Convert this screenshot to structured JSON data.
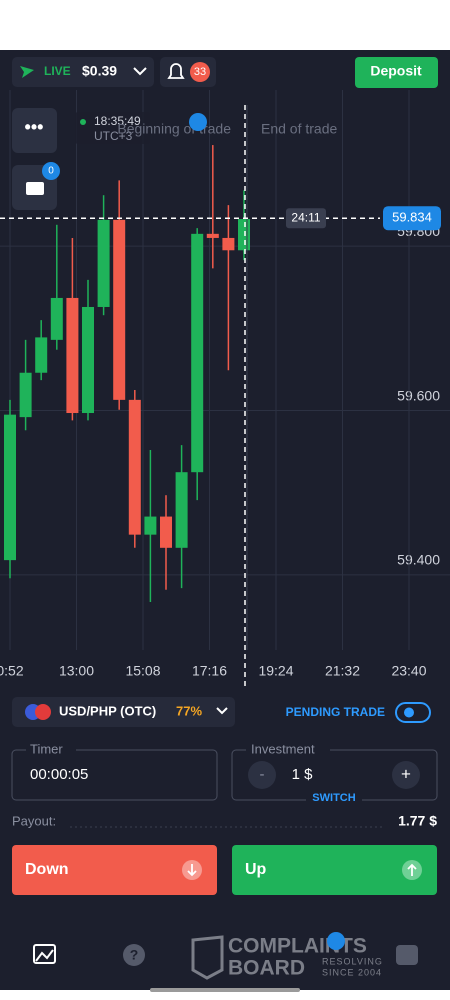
{
  "header": {
    "mode": "LIVE",
    "balance": "$0.39",
    "notifications": "33",
    "deposit": "Deposit"
  },
  "sidebar": {
    "portfolio_count": "0"
  },
  "chart_data": {
    "type": "candlestick",
    "time": "18:35:49",
    "timezone": "UTC+3",
    "trade_start_label": "Beginning of trade",
    "trade_end_label": "End of trade",
    "countdown": "24:11",
    "current_price": 59.834,
    "up_color": "#1fb35a",
    "down_color": "#f25c4c",
    "grid": true,
    "ylim": [
      59.26,
      59.99
    ],
    "yticks": [
      {
        "value": 59.8,
        "label": "59.800"
      },
      {
        "value": 59.6,
        "label": "59.600"
      },
      {
        "value": 59.4,
        "label": "59.400"
      }
    ],
    "xtick_labels": [
      "0:52",
      "13:00",
      "15:08",
      "17:16",
      "19:24",
      "21:32",
      "23:40"
    ],
    "open": [
      59.418,
      59.592,
      59.646,
      59.686,
      59.737,
      59.597,
      59.726,
      59.832,
      59.613,
      59.449,
      59.471,
      59.433,
      59.525,
      59.815,
      59.81,
      59.795
    ],
    "high": [
      59.613,
      59.686,
      59.71,
      59.826,
      59.81,
      59.759,
      59.862,
      59.88,
      59.625,
      59.552,
      59.497,
      59.558,
      59.822,
      59.923,
      59.85,
      59.868
    ],
    "low": [
      59.396,
      59.576,
      59.637,
      59.674,
      59.588,
      59.588,
      59.716,
      59.601,
      59.433,
      59.367,
      59.382,
      59.384,
      59.491,
      59.773,
      59.649,
      59.783
    ],
    "close": [
      59.595,
      59.646,
      59.689,
      59.737,
      59.597,
      59.726,
      59.832,
      59.613,
      59.449,
      59.471,
      59.433,
      59.525,
      59.815,
      59.81,
      59.795,
      59.833
    ]
  },
  "trade_panel": {
    "asset": "USD/PHP (OTC)",
    "profit": "77%",
    "pending_trade": "PENDING TRADE",
    "timer_label": "Timer",
    "timer_value": "00:00:05",
    "investment_label": "Investment",
    "minus": "-",
    "investment_value": "1 $",
    "plus": "+",
    "switch": "SWITCH",
    "payout_label": "Payout:",
    "payout_value": "1.77 $",
    "down": "Down",
    "up": "Up"
  },
  "watermark": {
    "line1": "COMPLAINTS",
    "line2": "BOARD",
    "tagline1": "RESOLVING",
    "tagline2": "SINCE 2004"
  }
}
